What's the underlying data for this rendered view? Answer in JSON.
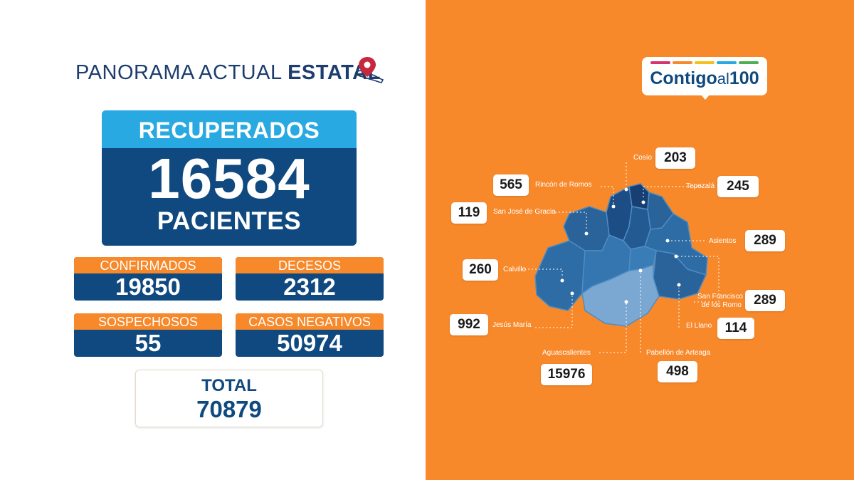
{
  "header": {
    "title_light": "PANORAMA ACTUAL",
    "title_bold": "ESTATAL",
    "icon": "mexico-location-pin-icon"
  },
  "recuperados": {
    "label": "RECUPERADOS",
    "value": "16584",
    "unit": "PACIENTES"
  },
  "stats": [
    {
      "label": "CONFIRMADOS",
      "value": "19850"
    },
    {
      "label": "DECESOS",
      "value": "2312"
    },
    {
      "label": "SOSPECHOSOS",
      "value": "55"
    },
    {
      "label": "CASOS NEGATIVOS",
      "value": "50974"
    }
  ],
  "total": {
    "label": "TOTAL",
    "value": "70879"
  },
  "logo": {
    "main": "Contigo",
    "al": "al",
    "num": "100",
    "stripe_colors": [
      "#d6336c",
      "#f7892b",
      "#f2c11b",
      "#29a9e1",
      "#4caf50"
    ]
  },
  "municipios": [
    {
      "name": "Cosío",
      "value": "203"
    },
    {
      "name": "Rincón de Romos",
      "value": "565"
    },
    {
      "name": "Tepezalá",
      "value": "245"
    },
    {
      "name": "San José de Gracia",
      "value": "119"
    },
    {
      "name": "Asientos",
      "value": "289"
    },
    {
      "name": "Calvillo",
      "value": "260"
    },
    {
      "name": "San Francisco",
      "name2": "de los Romo",
      "value": "289"
    },
    {
      "name": "Jesús María",
      "value": "992"
    },
    {
      "name": "El Llano",
      "value": "114"
    },
    {
      "name": "Aguascalientes",
      "value": "15976"
    },
    {
      "name": "Pabellón de Arteaga",
      "value": "498"
    }
  ],
  "colors": {
    "orange": "#f7892b",
    "navy": "#10497f",
    "sky": "#29a9e1"
  }
}
